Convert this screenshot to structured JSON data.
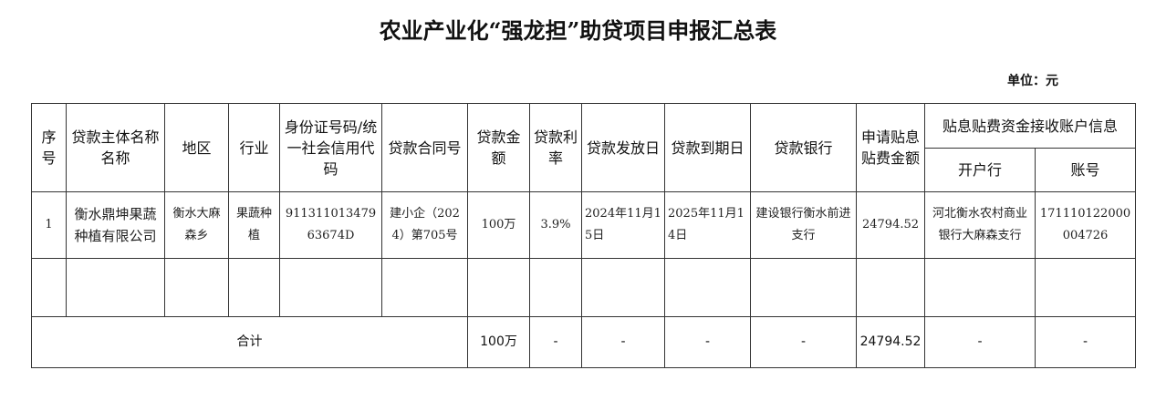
{
  "title": "农业产业化“强龙担”助贷项目申报汇总表",
  "unit": "单位：元",
  "headers": {
    "seq": "序号",
    "borrower": "贷款主体名称名称",
    "region": "地区",
    "industry": "行业",
    "id_code": "身份证号码/统一社会信用代码",
    "contract": "贷款合同号",
    "amount": "贷款金额",
    "rate": "贷款利率",
    "issue_date": "贷款发放日",
    "due_date": "贷款到期日",
    "bank": "贷款银行",
    "subsidy": "申请贴息贴费金额",
    "account_info": "贴息贴费资金接收账户信息",
    "open_bank": "开户行",
    "account_no": "账号"
  },
  "rows": [
    {
      "seq": "1",
      "borrower": "衡水鼎坤果蔬种植有限公司",
      "region": "衡水大麻森乡",
      "industry": "果蔬种植",
      "id_code": "91131101347963674D",
      "contract": "建小企（2024）第705号",
      "amount": "100万",
      "rate": "3.9%",
      "issue_date": "2024年11月15日",
      "due_date": "2025年11月14日",
      "bank": "建设银行衡水前进支行",
      "subsidy": "24794.52",
      "open_bank": "河北衡水农村商业银行大麻森支行",
      "account_no": "171110122000004726"
    }
  ],
  "total": {
    "label": "合计",
    "amount": "100万",
    "rate": "-",
    "issue_date": "-",
    "due_date": "-",
    "bank": "-",
    "subsidy": "24794.52",
    "open_bank": "-",
    "account_no": "-"
  }
}
